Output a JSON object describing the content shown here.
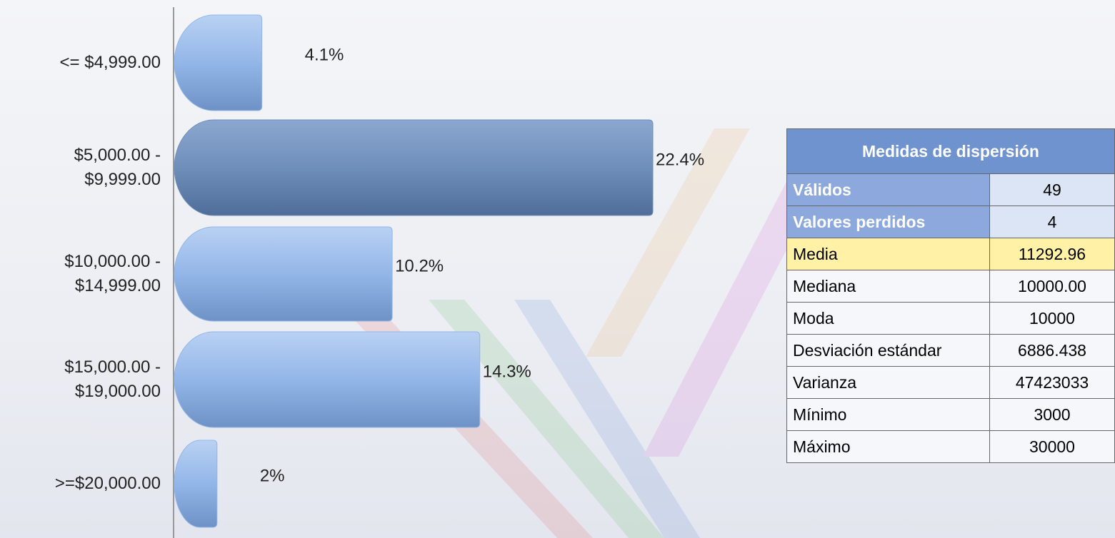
{
  "chart_data": {
    "type": "bar",
    "orientation": "horizontal",
    "categories": [
      "<= $4,999.00",
      "$5,000.00 - $9,999.00",
      "$10,000.00 - $14,999.00",
      "$15,000.00 - $19,000.00",
      ">=$20,000.00"
    ],
    "values": [
      4.1,
      22.4,
      10.2,
      14.3,
      2
    ],
    "value_labels": [
      "4.1%",
      "22.4%",
      "10.2%",
      "14.3%",
      "2%"
    ],
    "colors": [
      "#93b6e8",
      "#6f8fbb",
      "#93b6e8",
      "#93b6e8",
      "#93b6e8"
    ]
  },
  "table": {
    "header": "Medidas de dispersión",
    "rows": [
      [
        "Válidos",
        "49"
      ],
      [
        "Valores perdidos",
        "4"
      ],
      [
        "Media",
        "11292.96"
      ],
      [
        "Mediana",
        "10000.00"
      ],
      [
        "Moda",
        "10000"
      ],
      [
        "Desviación estándar",
        "6886.438"
      ],
      [
        "Varianza",
        "47423033"
      ],
      [
        "Mínimo",
        "3000"
      ],
      [
        "Máximo",
        "30000"
      ]
    ]
  }
}
